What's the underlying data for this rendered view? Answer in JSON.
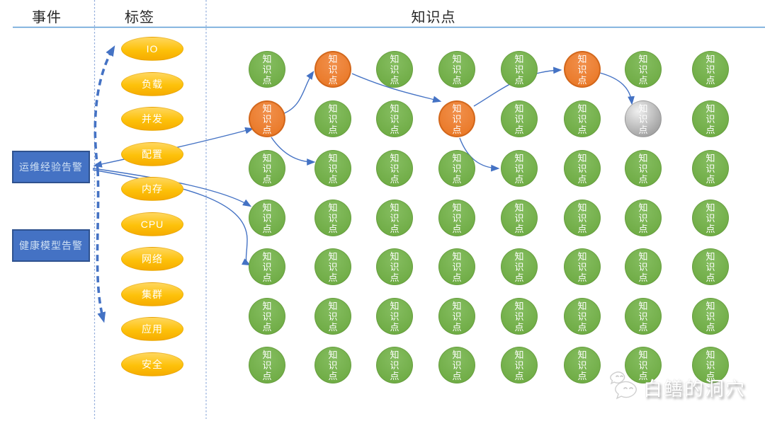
{
  "header": {
    "col_event": "事件",
    "col_tag": "标签",
    "col_knowledge": "知识点"
  },
  "events": [
    {
      "id": "event0",
      "label": "运维经验告警"
    },
    {
      "id": "event1",
      "label": "健康模型告警"
    }
  ],
  "tags": [
    "IO",
    "负载",
    "并发",
    "配置",
    "内存",
    "CPU",
    "网络",
    "集群",
    "应用",
    "安全"
  ],
  "knowledge": {
    "node_label": "知识点",
    "cols": 8,
    "rows": 7,
    "orange_cells": [
      [
        1,
        0
      ],
      [
        5,
        0
      ],
      [
        0,
        1
      ],
      [
        3,
        1
      ]
    ],
    "gray_cells": [
      [
        6,
        1
      ]
    ]
  },
  "edges": [
    {
      "from": "k0-1",
      "to": "event0",
      "arrows": "both"
    },
    {
      "from": "event0",
      "to": "k0-3",
      "arrows": "end"
    },
    {
      "from": "event0",
      "to": "k0-4",
      "arrows": "end"
    },
    {
      "from": "k0-1",
      "to": "k1-0",
      "arrows": "end"
    },
    {
      "from": "k0-1",
      "to": "k1-2",
      "arrows": "end"
    },
    {
      "from": "k1-0",
      "to": "k3-1",
      "arrows": "end"
    },
    {
      "from": "k3-1",
      "to": "k5-0",
      "arrows": "end"
    },
    {
      "from": "k3-1",
      "to": "k4-2",
      "arrows": "end"
    },
    {
      "from": "k5-0",
      "to": "k6-1",
      "arrows": "end"
    }
  ],
  "dashed_arrows": [
    {
      "from": "运维经验告警",
      "to": "IO"
    },
    {
      "from": "运维经验告警",
      "to": "应用"
    }
  ],
  "colors": {
    "knowledge_green": "#70AD47",
    "knowledge_orange": "#ED7D31",
    "knowledge_gray": "#A6A6A6",
    "tag_yellow": "#FFC000",
    "event_blue": "#4472C4",
    "event_border": "#2F528F",
    "connector_blue": "#4472C4",
    "header_rule_blue": "#5B9BD5",
    "separator_blue": "#93ADDB"
  },
  "watermark": {
    "text": "白鳝的洞穴"
  }
}
